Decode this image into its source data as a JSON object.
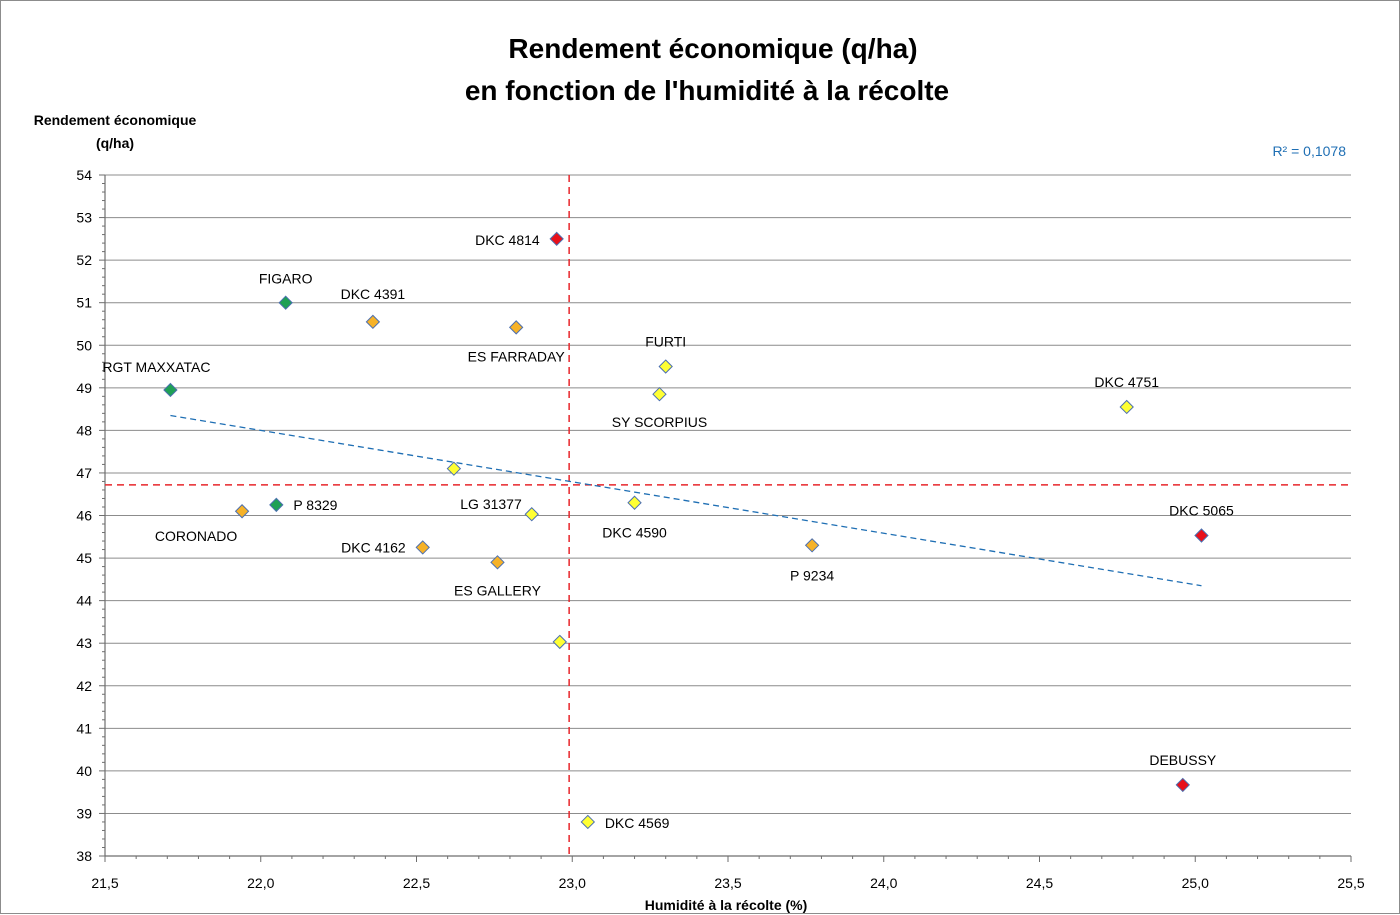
{
  "chart_data": {
    "type": "scatter",
    "title_line1": "Rendement économique (q/ha)",
    "title_line2": "en fonction de l'humidité à la récolte",
    "ylabel_line1": "Rendement économique",
    "ylabel_line2": "(q/ha)",
    "xlabel": "Humidité à la récolte (%)",
    "r2_label": "R² = 0,1078",
    "xlim": [
      21.5,
      25.5
    ],
    "ylim": [
      38,
      54
    ],
    "x_ticks": [
      "21,5",
      "22,0",
      "22,5",
      "23,0",
      "23,5",
      "24,0",
      "24,5",
      "25,0",
      "25,5"
    ],
    "y_ticks": [
      "38",
      "39",
      "40",
      "41",
      "42",
      "43",
      "44",
      "45",
      "46",
      "47",
      "48",
      "49",
      "50",
      "51",
      "52",
      "53",
      "54"
    ],
    "grid": "horizontal",
    "reference_lines": {
      "x_mean": 22.99,
      "y_mean": 46.72,
      "color": "#e8262b"
    },
    "trendline": {
      "x_start": 21.71,
      "y_start": 48.35,
      "x_end": 25.02,
      "y_end": 44.35,
      "color": "#1f6fb4"
    },
    "colors": {
      "green": "#1fa055",
      "orange": "#f6b228",
      "yellow": "#ffff33",
      "red": "#e8101a",
      "outline": "#4b6fb0"
    },
    "points": [
      {
        "label": "RGT MAXXATAC",
        "x": 21.71,
        "y": 48.95,
        "color": "green"
      },
      {
        "label": "FIGARO",
        "x": 22.08,
        "y": 51.0,
        "color": "green"
      },
      {
        "label": "P 8329",
        "x": 22.05,
        "y": 46.25,
        "color": "green"
      },
      {
        "label": "CORONADO",
        "x": 21.94,
        "y": 46.1,
        "color": "orange"
      },
      {
        "label": "DKC 4391",
        "x": 22.36,
        "y": 50.55,
        "color": "orange"
      },
      {
        "label": "ES FARRADAY",
        "x": 22.82,
        "y": 50.42,
        "color": "orange"
      },
      {
        "label": "DKC 4162",
        "x": 22.52,
        "y": 45.25,
        "color": "orange"
      },
      {
        "label": "ES GALLERY",
        "x": 22.76,
        "y": 44.9,
        "color": "orange"
      },
      {
        "label": "P 9234",
        "x": 23.77,
        "y": 45.3,
        "color": "orange"
      },
      {
        "label": "",
        "x": 22.62,
        "y": 47.1,
        "color": "yellow"
      },
      {
        "label": "LG 31377",
        "x": 22.87,
        "y": 46.03,
        "color": "yellow"
      },
      {
        "label": "",
        "x": 22.96,
        "y": 43.03,
        "color": "yellow"
      },
      {
        "label": "DKC 4569",
        "x": 23.05,
        "y": 38.8,
        "color": "yellow"
      },
      {
        "label": "DKC 4590",
        "x": 23.2,
        "y": 46.3,
        "color": "yellow"
      },
      {
        "label": "SY SCORPIUS",
        "x": 23.28,
        "y": 48.85,
        "color": "yellow"
      },
      {
        "label": "FURTI",
        "x": 23.3,
        "y": 49.5,
        "color": "yellow"
      },
      {
        "label": "DKC 4751",
        "x": 24.78,
        "y": 48.55,
        "color": "yellow"
      },
      {
        "label": "DKC 4814",
        "x": 22.95,
        "y": 52.5,
        "color": "red"
      },
      {
        "label": "DKC 5065",
        "x": 25.02,
        "y": 45.53,
        "color": "red"
      },
      {
        "label": "DEBUSSY",
        "x": 24.96,
        "y": 39.67,
        "color": "red"
      }
    ]
  }
}
